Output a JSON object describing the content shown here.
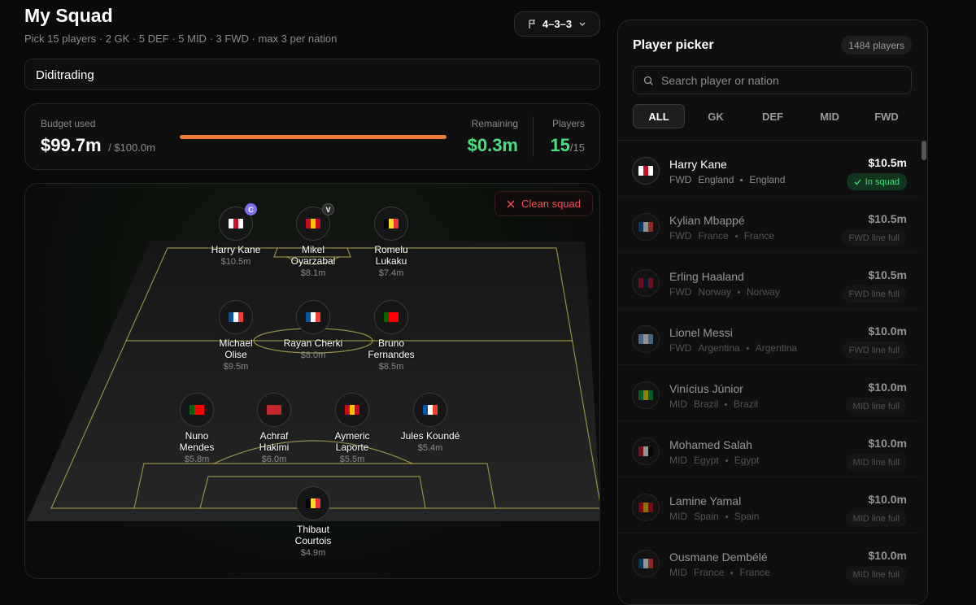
{
  "header": {
    "title": "My Squad",
    "subtitle": "Pick 15 players · 2 GK · 5 DEF · 5 MID · 3 FWD · max 3 per nation",
    "formation": "4–3–3"
  },
  "team_name": "Diditrading",
  "budget": {
    "label": "Budget used",
    "used": "$99.7m",
    "total": "/ $100.0m",
    "remaining_label": "Remaining",
    "remaining": "$0.3m",
    "players_label": "Players",
    "players": "15",
    "players_max": "/15"
  },
  "clean_button": "Clean squad",
  "pitch": {
    "rows": [
      [
        {
          "name": [
            "Harry Kane"
          ],
          "price": "$10.5m",
          "badge": "C",
          "flag": [
            "#ffffff",
            "#c8102e",
            "#ffffff"
          ]
        },
        {
          "name": [
            "Mikel",
            "Oyarzabal"
          ],
          "price": "$8.1m",
          "badge": "V",
          "flag": [
            "#c60b1e",
            "#ffc400",
            "#c60b1e"
          ]
        },
        {
          "name": [
            "Romelu",
            "Lukaku"
          ],
          "price": "$7.4m",
          "flag": [
            "#000000",
            "#fdda24",
            "#ef3340"
          ]
        }
      ],
      [
        {
          "name": [
            "Michael",
            "Olise"
          ],
          "price": "$9.5m",
          "flag": [
            "#0055a4",
            "#ffffff",
            "#ef4135"
          ]
        },
        {
          "name": [
            "Rayan Cherki"
          ],
          "price": "$8.0m",
          "flag": [
            "#0055a4",
            "#ffffff",
            "#ef4135"
          ]
        },
        {
          "name": [
            "Bruno",
            "Fernandes"
          ],
          "price": "$8.5m",
          "flag": [
            "#006600",
            "#ff0000",
            "#ff0000"
          ]
        }
      ],
      [
        {
          "name": [
            "Nuno",
            "Mendes"
          ],
          "price": "$5.8m",
          "flag": [
            "#006600",
            "#ff0000",
            "#ff0000"
          ]
        },
        {
          "name": [
            "Achraf",
            "Hakimi"
          ],
          "price": "$6.0m",
          "flag": [
            "#c1272d",
            "#c1272d",
            "#c1272d"
          ]
        },
        {
          "name": [
            "Aymeric",
            "Laporte"
          ],
          "price": "$5.5m",
          "flag": [
            "#c60b1e",
            "#ffc400",
            "#c60b1e"
          ]
        },
        {
          "name": [
            "Jules Koundé"
          ],
          "price": "$5.4m",
          "flag": [
            "#0055a4",
            "#ffffff",
            "#ef4135"
          ]
        }
      ],
      [
        {
          "name": [
            "Thibaut",
            "Courtois"
          ],
          "price": "$4.9m",
          "flag": [
            "#000000",
            "#fdda24",
            "#ef3340"
          ]
        }
      ]
    ]
  },
  "picker": {
    "title": "Player picker",
    "count": "1484 players",
    "search_placeholder": "Search player or nation",
    "tabs": [
      "ALL",
      "GK",
      "DEF",
      "MID",
      "FWD"
    ],
    "players": [
      {
        "name": "Harry Kane",
        "position": "FWD",
        "nation": "England",
        "team": "England",
        "price": "$10.5m",
        "status": "In squad",
        "available": true,
        "flag": [
          "#ffffff",
          "#c8102e",
          "#ffffff"
        ]
      },
      {
        "name": "Kylian Mbappé",
        "position": "FWD",
        "nation": "France",
        "team": "France",
        "price": "$10.5m",
        "status": "FWD line full",
        "available": false,
        "flag": [
          "#0055a4",
          "#ffffff",
          "#ef4135"
        ]
      },
      {
        "name": "Erling Haaland",
        "position": "FWD",
        "nation": "Norway",
        "team": "Norway",
        "price": "$10.5m",
        "status": "FWD line full",
        "available": false,
        "flag": [
          "#ba0c2f",
          "#00205b",
          "#ba0c2f"
        ]
      },
      {
        "name": "Lionel Messi",
        "position": "FWD",
        "nation": "Argentina",
        "team": "Argentina",
        "price": "$10.0m",
        "status": "FWD line full",
        "available": false,
        "flag": [
          "#74acdf",
          "#ffffff",
          "#74acdf"
        ]
      },
      {
        "name": "Vinícius Júnior",
        "position": "MID",
        "nation": "Brazil",
        "team": "Brazil",
        "price": "$10.0m",
        "status": "MID line full",
        "available": false,
        "flag": [
          "#009c3b",
          "#ffdf00",
          "#009c3b"
        ]
      },
      {
        "name": "Mohamed Salah",
        "position": "MID",
        "nation": "Egypt",
        "team": "Egypt",
        "price": "$10.0m",
        "status": "MID line full",
        "available": false,
        "flag": [
          "#ce1126",
          "#ffffff",
          "#000000"
        ]
      },
      {
        "name": "Lamine Yamal",
        "position": "MID",
        "nation": "Spain",
        "team": "Spain",
        "price": "$10.0m",
        "status": "MID line full",
        "available": false,
        "flag": [
          "#c60b1e",
          "#ffc400",
          "#c60b1e"
        ]
      },
      {
        "name": "Ousmane Dembélé",
        "position": "MID",
        "nation": "France",
        "team": "France",
        "price": "$10.0m",
        "status": "MID line full",
        "available": false,
        "flag": [
          "#0055a4",
          "#ffffff",
          "#ef4135"
        ]
      }
    ]
  }
}
